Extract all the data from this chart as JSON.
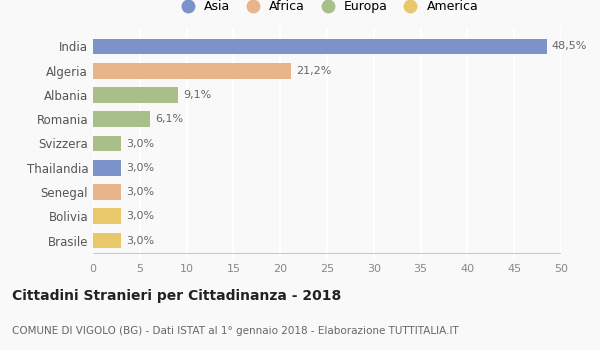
{
  "countries": [
    "India",
    "Algeria",
    "Albania",
    "Romania",
    "Svizzera",
    "Thailandia",
    "Senegal",
    "Bolivia",
    "Brasile"
  ],
  "values": [
    48.5,
    21.2,
    9.1,
    6.1,
    3.0,
    3.0,
    3.0,
    3.0,
    3.0
  ],
  "labels": [
    "48,5%",
    "21,2%",
    "9,1%",
    "6,1%",
    "3,0%",
    "3,0%",
    "3,0%",
    "3,0%",
    "3,0%"
  ],
  "colors": [
    "#7b93c8",
    "#e8b48a",
    "#a8bf8a",
    "#a8bf8a",
    "#a8bf8a",
    "#7b93c8",
    "#e8b48a",
    "#e8c86a",
    "#e8c86a"
  ],
  "legend_labels": [
    "Asia",
    "Africa",
    "Europa",
    "America"
  ],
  "legend_colors": [
    "#7b93c8",
    "#e8b48a",
    "#a8bf8a",
    "#e8c86a"
  ],
  "title": "Cittadini Stranieri per Cittadinanza - 2018",
  "subtitle": "COMUNE DI VIGOLO (BG) - Dati ISTAT al 1° gennaio 2018 - Elaborazione TUTTITALIA.IT",
  "xlim": [
    0,
    50
  ],
  "xticks": [
    0,
    5,
    10,
    15,
    20,
    25,
    30,
    35,
    40,
    45,
    50
  ],
  "background_color": "#f9f9f9",
  "grid_color": "#ffffff",
  "bar_height": 0.65
}
